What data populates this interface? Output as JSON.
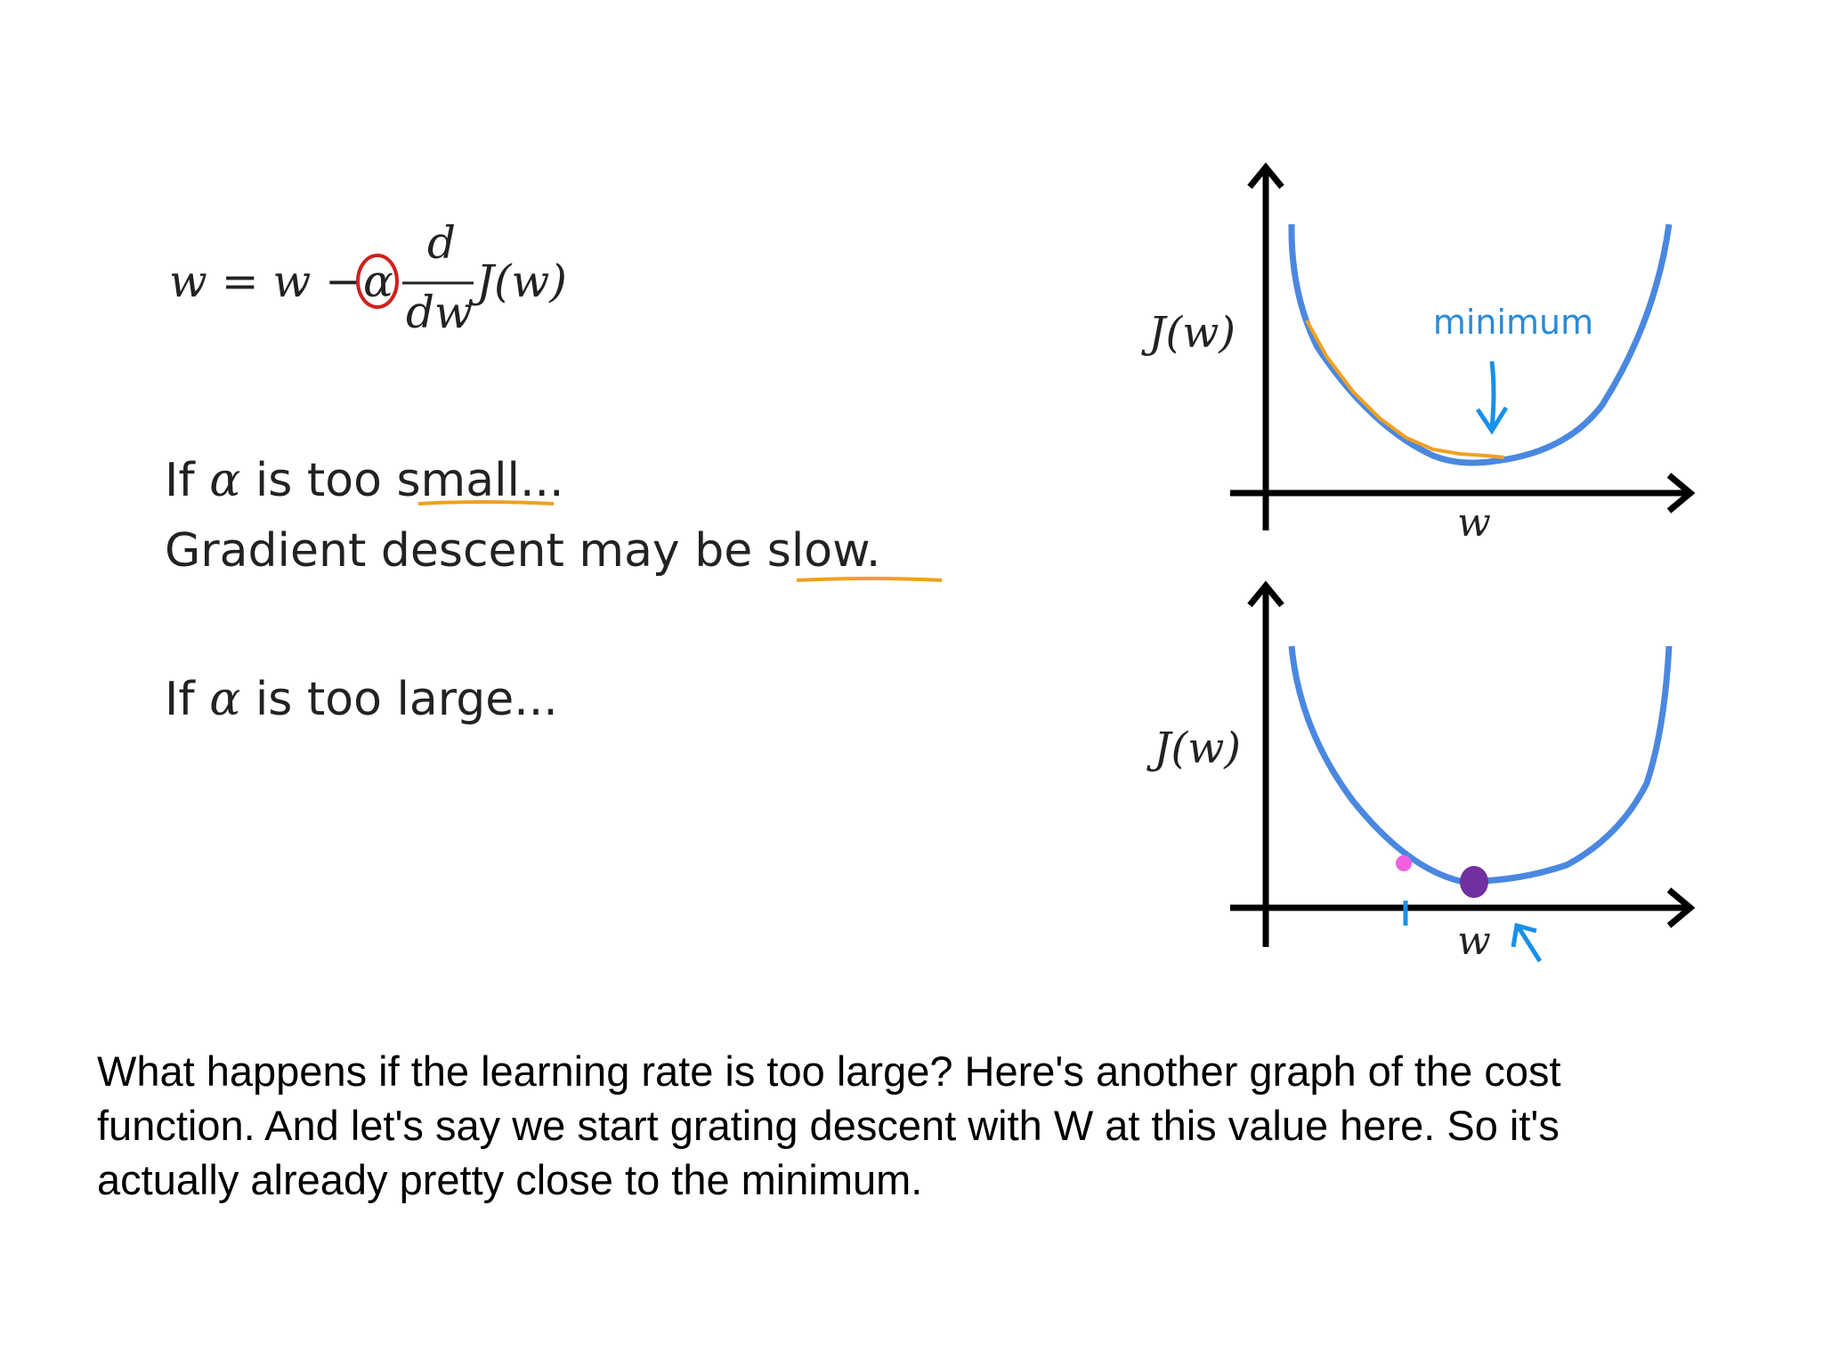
{
  "formula": {
    "lhs": "w = w −",
    "alpha": "α",
    "num": "d",
    "den": "dw",
    "rhs": "J(w)"
  },
  "lines": [
    [
      "If",
      "α",
      "is too small..."
    ],
    [
      "Gradient descent may be slow."
    ],
    [
      "If",
      "α",
      "is too large..."
    ]
  ],
  "graph_top": {
    "ylabel": "J(w)",
    "xlabel": "w",
    "annotation": "minimum"
  },
  "graph_bottom": {
    "ylabel": "J(w)",
    "xlabel": "w"
  },
  "caption": [
    "What happens if the learning rate is too large? Here's another graph of the cost",
    "function. And let's say we start grating descent with W at this value here. So it's",
    "actually already pretty close to the minimum."
  ]
}
